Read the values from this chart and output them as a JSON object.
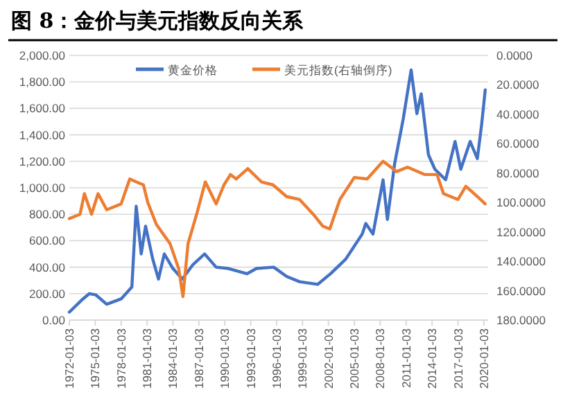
{
  "chart_data": {
    "type": "line",
    "title": "图 8：金价与美元指数反向关系",
    "legend": "top",
    "grid": "y",
    "line_style": "solid",
    "marker": "none",
    "xlim": [
      "1972-01-03",
      "2020-06-30"
    ],
    "xticks": [
      "1972-01-03",
      "1975-01-03",
      "1978-01-03",
      "1981-01-03",
      "1984-01-03",
      "1987-01-03",
      "1990-01-03",
      "1993-01-03",
      "1996-01-03",
      "1999-01-03",
      "2002-01-03",
      "2005-01-03",
      "2008-01-03",
      "2011-01-03",
      "2014-01-03",
      "2017-01-03",
      "2020-01-03"
    ],
    "ylim": [
      0,
      2000
    ],
    "yticks": [
      {
        "value": 0,
        "label": "0.00"
      },
      {
        "value": 200,
        "label": "200.00"
      },
      {
        "value": 400,
        "label": "400.00"
      },
      {
        "value": 600,
        "label": "600.00"
      },
      {
        "value": 800,
        "label": "800.00"
      },
      {
        "value": 1000,
        "label": "1,000.00"
      },
      {
        "value": 1200,
        "label": "1,200.00"
      },
      {
        "value": 1400,
        "label": "1,400.00"
      },
      {
        "value": 1600,
        "label": "1,600.00"
      },
      {
        "value": 1800,
        "label": "1,800.00"
      },
      {
        "value": 2000,
        "label": "2,000.00"
      }
    ],
    "y2lim": [
      180,
      0
    ],
    "y2ticks": [
      {
        "value": 0,
        "label": "0.0000"
      },
      {
        "value": 20,
        "label": "20.0000"
      },
      {
        "value": 40,
        "label": "40.0000"
      },
      {
        "value": 60,
        "label": "60.0000"
      },
      {
        "value": 80,
        "label": "80.0000"
      },
      {
        "value": 100,
        "label": "100.0000"
      },
      {
        "value": 120,
        "label": "120.0000"
      },
      {
        "value": 140,
        "label": "140.0000"
      },
      {
        "value": 160,
        "label": "160.0000"
      },
      {
        "value": 180,
        "label": "180.0000"
      }
    ],
    "series": [
      {
        "name": "黄金价格",
        "color": "#4472c4",
        "x": [
          "1972-01-03",
          "1973-08",
          "1974-05",
          "1975-02",
          "1976-05",
          "1978-01",
          "1979-04",
          "1979-10",
          "1980-05",
          "1980-11",
          "1981-09",
          "1982-05",
          "1983-01",
          "1984-01",
          "1985-02",
          "1986-05",
          "1987-09",
          "1989-01",
          "1990-06",
          "1992-08",
          "1993-09",
          "1995-09",
          "1997-03",
          "1998-09",
          "2000-10",
          "2002-04",
          "2004-01",
          "2005-12",
          "2006-05",
          "2007-03",
          "2008-05",
          "2008-11",
          "2009-09",
          "2010-09",
          "2011-08",
          "2012-04",
          "2012-10",
          "2013-08",
          "2014-05",
          "2015-08",
          "2016-09",
          "2017-05",
          "2018-06",
          "2019-04",
          "2019-10",
          "2020-03"
        ],
        "values": [
          60,
          160,
          200,
          190,
          120,
          160,
          250,
          860,
          500,
          710,
          460,
          310,
          500,
          390,
          310,
          420,
          500,
          400,
          390,
          350,
          390,
          400,
          330,
          290,
          270,
          350,
          460,
          650,
          730,
          650,
          1060,
          760,
          1180,
          1520,
          1890,
          1560,
          1710,
          1250,
          1140,
          1060,
          1350,
          1140,
          1350,
          1220,
          1480,
          1740
        ]
      },
      {
        "name": "美元指数(右轴倒序)",
        "color": "#ed7d31",
        "axis": "y2",
        "x": [
          "1972-01-03",
          "1973-04",
          "1973-10",
          "1974-08",
          "1975-05",
          "1976-05",
          "1978-01",
          "1979-01",
          "1979-10",
          "1980-08",
          "1981-02",
          "1982-02",
          "1983-09",
          "1984-09",
          "1985-03",
          "1985-10",
          "1986-10",
          "1987-10",
          "1989-01",
          "1989-12",
          "1990-09",
          "1991-05",
          "1992-09",
          "1994-04",
          "1995-08",
          "1997-03",
          "1998-09",
          "2000-04",
          "2001-05",
          "2002-03",
          "2003-05",
          "2005-01",
          "2006-07",
          "2008-05",
          "2009-12",
          "2011-03",
          "2013-03",
          "2014-08",
          "2015-05",
          "2017-01",
          "2017-12",
          "2019-04",
          "2020-03"
        ],
        "values": [
          111,
          108,
          94,
          108,
          94,
          105,
          101,
          84,
          86,
          88,
          100,
          115,
          128,
          145,
          164,
          128,
          108,
          86,
          101,
          88,
          81,
          84,
          77,
          86,
          88,
          96,
          98,
          108,
          116,
          118,
          98,
          83,
          84,
          72,
          79,
          76,
          81,
          81,
          94,
          98,
          89,
          96,
          101
        ]
      }
    ]
  }
}
